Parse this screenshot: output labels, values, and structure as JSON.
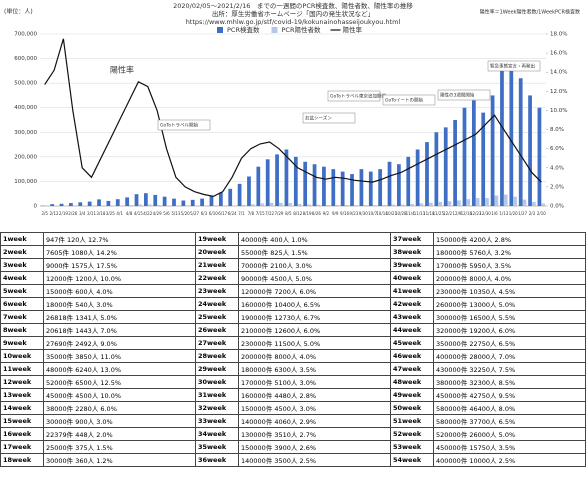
{
  "chart_data": {
    "type": "bar",
    "unit_label": "(単位：人)",
    "title": "2020/02/05～2021/2/16　までの一週間のPCR検査数、陽性者数、陽性率の推移",
    "subtitle": "出所：厚生労働省ホームページ「国内の発生状況など」",
    "source_url": "https://www.mhlw.go.jp/stf/covid-19/kokunainohasseijoukyou.html",
    "note": "陽性率＝1Week陽性者数/1WeekPCR検査数",
    "categories": [
      "2/5",
      "2/12",
      "2/19",
      "2/26",
      "3/4",
      "3/11",
      "3/18",
      "3/25",
      "4/1",
      "4/8",
      "4/15",
      "4/22",
      "4/29",
      "5/6",
      "5/13",
      "5/20",
      "5/27",
      "6/3",
      "6/10",
      "6/17",
      "6/24",
      "7/1",
      "7/8",
      "7/15",
      "7/22",
      "7/29",
      "8/5",
      "8/12",
      "8/19",
      "8/26",
      "9/2",
      "9/9",
      "9/16",
      "9/23",
      "9/30",
      "10/7",
      "10/14",
      "10/21",
      "10/28",
      "11/4",
      "11/11",
      "11/18",
      "11/25",
      "12/2",
      "12/9",
      "12/16",
      "12/23",
      "12/30",
      "1/6",
      "1/13",
      "1/20",
      "1/27",
      "2/3",
      "2/10"
    ],
    "series": [
      {
        "name": "PCR検査数",
        "color": "#3f6fc4",
        "values": [
          947,
          7605,
          9000,
          12000,
          15000,
          18000,
          26818,
          20618,
          27690,
          35000,
          48000,
          52000,
          45000,
          38000,
          30000,
          22379,
          25000,
          30000,
          40000,
          55000,
          70000,
          90000,
          120000,
          160000,
          190000,
          210000,
          230000,
          200000,
          180000,
          170000,
          160000,
          150000,
          140000,
          130000,
          150000,
          140000,
          150000,
          180000,
          170000,
          200000,
          230000,
          260000,
          300000,
          320000,
          350000,
          400000,
          430000,
          380000,
          450000,
          580000,
          580000,
          520000,
          450000,
          400000
        ]
      },
      {
        "name": "PCR陽性者数",
        "color": "#b4c7e7",
        "values": [
          120,
          1080,
          1575,
          1200,
          600,
          540,
          1341,
          1443,
          2492,
          3850,
          6240,
          6500,
          4500,
          2280,
          900,
          448,
          375,
          360,
          400,
          825,
          2100,
          4500,
          7200,
          10400,
          12730,
          12600,
          11500,
          8000,
          6300,
          5100,
          4480,
          4500,
          4060,
          3510,
          3900,
          3500,
          4200,
          5760,
          5950,
          8000,
          10350,
          13000,
          16500,
          19200,
          22750,
          28000,
          32250,
          32300,
          42750,
          46400,
          37700,
          26000,
          15750,
          10000
        ]
      },
      {
        "name": "陽性率",
        "color": "#111111",
        "axis": "y2",
        "values": [
          12.7,
          14.2,
          17.5,
          10.0,
          4.0,
          3.0,
          5.0,
          7.0,
          9.0,
          11.0,
          13.0,
          12.5,
          10.0,
          6.0,
          3.0,
          2.0,
          1.5,
          1.2,
          1.0,
          1.5,
          3.0,
          5.0,
          6.0,
          6.5,
          6.7,
          6.0,
          5.0,
          4.0,
          3.5,
          3.0,
          2.8,
          3.0,
          2.9,
          2.7,
          2.6,
          2.5,
          2.8,
          3.2,
          3.5,
          4.0,
          4.5,
          5.0,
          5.5,
          6.0,
          6.5,
          7.0,
          7.5,
          8.5,
          9.5,
          8.0,
          6.5,
          5.0,
          3.5,
          2.5
        ]
      }
    ],
    "ylim": [
      0,
      700000
    ],
    "yticks": [
      0,
      {
        "value": 100000,
        "label": "100,000"
      },
      {
        "value": 200000,
        "label": "200,000"
      },
      {
        "value": 300000,
        "label": "300,000"
      },
      {
        "value": 400000,
        "label": "400,000"
      },
      {
        "value": 500000,
        "label": "500,000"
      },
      {
        "value": 600000,
        "label": "600,000"
      },
      {
        "value": 700000,
        "label": "700,000"
      }
    ],
    "y2lim": [
      0,
      18
    ],
    "y2ticks": [
      {
        "value": 0,
        "label": "0.0%"
      },
      {
        "value": 2,
        "label": "2.0%"
      },
      {
        "value": 4,
        "label": "4.0%"
      },
      {
        "value": 6,
        "label": "6.0%"
      },
      {
        "value": 8,
        "label": "8.0%"
      },
      {
        "value": 10,
        "label": "10.0%"
      },
      {
        "value": 12,
        "label": "12.0%"
      },
      {
        "value": 14,
        "label": "14.0%"
      },
      {
        "value": 16,
        "label": "16.0%"
      },
      {
        "value": 18,
        "label": "18.0%"
      }
    ],
    "grid": true,
    "annotations": [
      "陽性率",
      "GoToトラベル開始",
      "お盆シーズン",
      "GoToトラベル東京追加開催",
      "GoToイートの開始",
      "陽性の3週間開始",
      "緊急事態宣言・再発出"
    ]
  },
  "table": {
    "rows": [
      [
        "1week",
        "947件 120人 12.7%"
      ],
      [
        "2week",
        "7605件 1080人 14.2%"
      ],
      [
        "3week",
        "9000件 1575人 17.5%"
      ],
      [
        "4week",
        "12000件 1200人 10.0%"
      ],
      [
        "5week",
        "15000件 600人 4.0%"
      ],
      [
        "6week",
        "18000件 540人 3.0%"
      ],
      [
        "7week",
        "26818件 1341人 5.0%"
      ],
      [
        "8week",
        "20618件 1443人 7.0%"
      ],
      [
        "9week",
        "27690件 2492人 9.0%"
      ],
      [
        "10week",
        "35000件 3850人 11.0%"
      ],
      [
        "11week",
        "48000件 6240人 13.0%"
      ],
      [
        "12week",
        "52000件 6500人 12.5%"
      ],
      [
        "13week",
        "45000件 4500人 10.0%"
      ],
      [
        "14week",
        "38000件 2280人 6.0%"
      ],
      [
        "15week",
        "30000件 900人 3.0%"
      ],
      [
        "16week",
        "22379件 448人 2.0%"
      ],
      [
        "17week",
        "25000件 375人 1.5%"
      ],
      [
        "18week",
        "30000件 360人 1.2%"
      ],
      [
        "19week",
        "40000件 400人 1.0%"
      ],
      [
        "20week",
        "55000件 825人 1.5%"
      ],
      [
        "21week",
        "70000件 2100人 3.0%"
      ],
      [
        "22week",
        "90000件 4500人 5.0%"
      ],
      [
        "23week",
        "120000件 7200人 6.0%"
      ],
      [
        "24week",
        "160000件 10400人 6.5%"
      ],
      [
        "25week",
        "190000件 12730人 6.7%"
      ],
      [
        "26week",
        "210000件 12600人 6.0%"
      ],
      [
        "27week",
        "230000件 11500人 5.0%"
      ],
      [
        "28week",
        "200000件 8000人 4.0%"
      ],
      [
        "29week",
        "180000件 6300人 3.5%"
      ],
      [
        "30week",
        "170000件 5100人 3.0%"
      ],
      [
        "31week",
        "160000件 4480人 2.8%"
      ],
      [
        "32week",
        "150000件 4500人 3.0%"
      ],
      [
        "33week",
        "140000件 4060人 2.9%"
      ],
      [
        "34week",
        "130000件 3510人 2.7%"
      ],
      [
        "35week",
        "150000件 3900人 2.6%"
      ],
      [
        "36week",
        "140000件 3500人 2.5%"
      ],
      [
        "37week",
        "150000件 4200人 2.8%"
      ],
      [
        "38week",
        "180000件 5760人 3.2%"
      ],
      [
        "39week",
        "170000件 5950人 3.5%"
      ],
      [
        "40week",
        "200000件 8000人 4.0%"
      ],
      [
        "41week",
        "230000件 10350人 4.5%"
      ],
      [
        "42week",
        "260000件 13000人 5.0%"
      ],
      [
        "43week",
        "300000件 16500人 5.5%"
      ],
      [
        "44week",
        "320000件 19200人 6.0%"
      ],
      [
        "45week",
        "350000件 22750人 6.5%"
      ],
      [
        "46week",
        "400000件 28000人 7.0%"
      ],
      [
        "47week",
        "430000件 32250人 7.5%"
      ],
      [
        "48week",
        "380000件 32300人 8.5%"
      ],
      [
        "49week",
        "450000件 42750人 9.5%"
      ],
      [
        "50week",
        "580000件 46400人 8.0%"
      ],
      [
        "51week",
        "580000件 37700人 6.5%"
      ],
      [
        "52week",
        "520000件 26000人 5.0%"
      ],
      [
        "53week",
        "450000件 15750人 3.5%"
      ],
      [
        "54week",
        "400000件 10000人 2.5%"
      ]
    ]
  }
}
